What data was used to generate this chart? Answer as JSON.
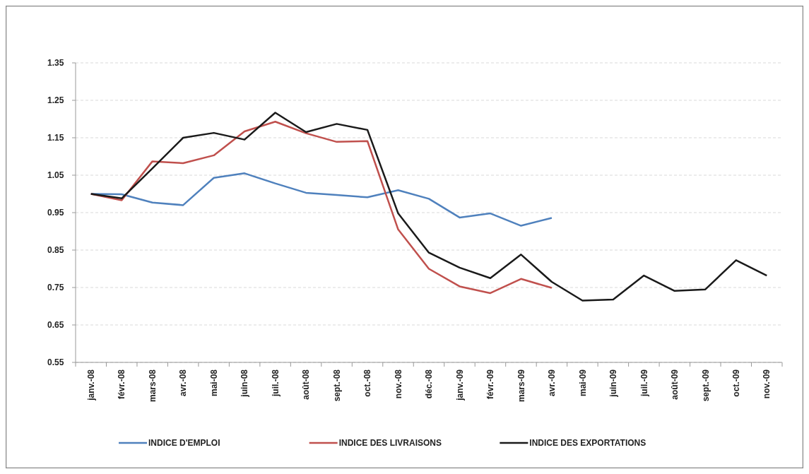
{
  "chart_data": {
    "type": "line",
    "categories": [
      "janv.-08",
      "févr.-08",
      "mars-08",
      "avr.-08",
      "mai-08",
      "juin-08",
      "juil.-08",
      "août-08",
      "sept.-08",
      "oct.-08",
      "nov.-08",
      "déc.-08",
      "janv.-09",
      "févr.-09",
      "mars-09",
      "avr.-09",
      "mai-09",
      "juin-09",
      "juil.-09",
      "août-09",
      "sept.-09",
      "oct.-09",
      "nov.-09"
    ],
    "series": [
      {
        "name": "INDICE D'EMPLOI",
        "color": "#4f81bd",
        "values": [
          1.0,
          0.999,
          0.977,
          0.97,
          1.043,
          1.055,
          1.028,
          1.003,
          0.997,
          0.991,
          1.01,
          0.987,
          0.937,
          0.948,
          0.915,
          0.936,
          null,
          null,
          null,
          null,
          null,
          null,
          null
        ]
      },
      {
        "name": "INDICE DES LIVRAISONS",
        "color": "#c0504d",
        "values": [
          1.0,
          0.983,
          1.087,
          1.082,
          1.103,
          1.167,
          1.193,
          1.162,
          1.139,
          1.141,
          0.905,
          0.8,
          0.753,
          0.735,
          0.773,
          0.749,
          null,
          null,
          null,
          null,
          null,
          null,
          null
        ]
      },
      {
        "name": "INDICE DES EXPORTATIONS",
        "color": "#1a1a1a",
        "values": [
          1.0,
          0.988,
          1.068,
          1.15,
          1.163,
          1.145,
          1.217,
          1.165,
          1.187,
          1.171,
          0.948,
          0.843,
          0.803,
          0.775,
          0.838,
          0.765,
          0.715,
          0.718,
          0.782,
          0.741,
          0.745,
          0.823,
          0.782
        ]
      }
    ],
    "ylim": [
      0.55,
      1.35
    ],
    "yticks": [
      0.55,
      0.65,
      0.75,
      0.85,
      0.95,
      1.05,
      1.15,
      1.25,
      1.35
    ],
    "grid": "y",
    "legend": "bottom",
    "marker": "none",
    "line_style": "solid"
  }
}
